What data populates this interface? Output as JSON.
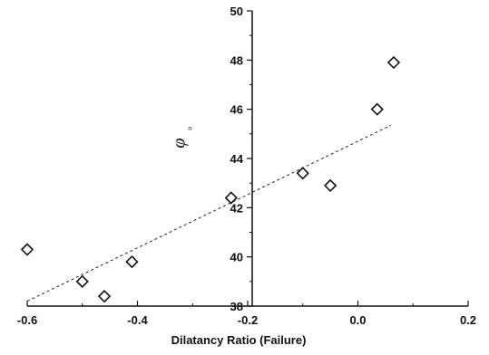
{
  "chart_data": {
    "type": "scatter",
    "title": "",
    "xlabel": "Dilatancy Ratio (Failure)",
    "ylabel": "φ",
    "ylabel_subscript": "u",
    "xlim": [
      -0.6,
      0.2
    ],
    "ylim": [
      38,
      50
    ],
    "xticks": [
      -0.6,
      -0.4,
      -0.2,
      0.0,
      0.2
    ],
    "xtick_labels": [
      "-0.6",
      "-0.4",
      "-0.2",
      "0.0",
      "0.2"
    ],
    "yticks": [
      38,
      40,
      42,
      44,
      46,
      48,
      50
    ],
    "ytick_labels": [
      "38",
      "40",
      "42",
      "44",
      "46",
      "48",
      "50"
    ],
    "grid": false,
    "marker": "open-diamond",
    "points": [
      {
        "x": -0.6,
        "y": 40.3
      },
      {
        "x": -0.5,
        "y": 39.0
      },
      {
        "x": -0.46,
        "y": 38.4
      },
      {
        "x": -0.41,
        "y": 39.8
      },
      {
        "x": -0.23,
        "y": 42.4
      },
      {
        "x": -0.1,
        "y": 43.4
      },
      {
        "x": -0.05,
        "y": 42.9
      },
      {
        "x": 0.035,
        "y": 46.0
      },
      {
        "x": 0.065,
        "y": 47.9
      }
    ],
    "trendline": {
      "style": "dashed",
      "points": [
        {
          "x": -0.6,
          "y": 38.2
        },
        {
          "x": 0.06,
          "y": 45.35
        }
      ]
    }
  }
}
